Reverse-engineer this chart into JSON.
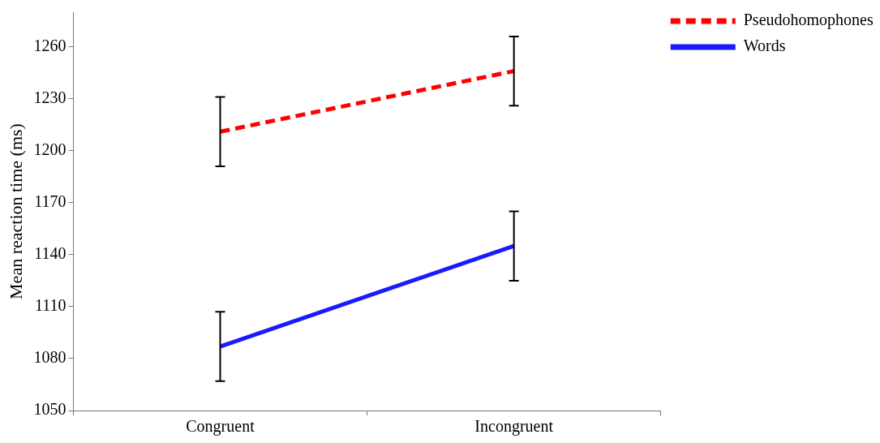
{
  "chart_data": {
    "type": "line",
    "ylabel": "Mean reaction time (ms)",
    "categories": [
      "Congruent",
      "Incongruent"
    ],
    "series": [
      {
        "name": "Pseudohomophones",
        "color": "#ff0000",
        "values": [
          1211,
          1246
        ],
        "errors": [
          20,
          20
        ],
        "line_style": "dashed"
      },
      {
        "name": "Words",
        "color": "#1a1aff",
        "values": [
          1087,
          1145
        ],
        "errors": [
          20,
          20
        ],
        "line_style": "solid"
      }
    ],
    "ylim": [
      1050,
      1280
    ],
    "yticks": [
      1050,
      1080,
      1110,
      1140,
      1170,
      1200,
      1230,
      1260
    ],
    "grid": false,
    "legend": "top right",
    "marker": "none"
  }
}
